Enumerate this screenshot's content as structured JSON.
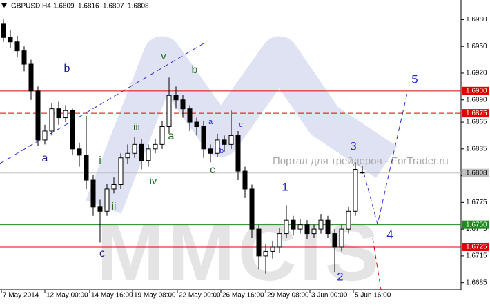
{
  "chart_data": {
    "type": "candlestick",
    "header": {
      "symbol": "GBPUSD,H4",
      "ohlc": [
        "1.6809",
        "1.6816",
        "1.6807",
        "1.6808"
      ]
    },
    "watermark": "Портал для трейдеров - ForTrader.ru",
    "logo": "MMCIS",
    "candles": {
      "open": [
        1.6975,
        1.696,
        1.6955,
        1.6945,
        1.693,
        1.69,
        1.6845,
        1.6855,
        1.688,
        1.687,
        1.6878,
        1.6835,
        1.6828,
        1.68,
        1.677,
        1.6765,
        1.679,
        1.6795,
        1.6825,
        1.683,
        1.684,
        1.6822,
        1.6835,
        1.684,
        1.686,
        1.6895,
        1.689,
        1.688,
        1.6865,
        1.686,
        1.6835,
        1.683,
        1.6845,
        1.684,
        1.685,
        1.681,
        1.679,
        1.6745,
        1.6715,
        1.672,
        1.6725,
        1.674,
        1.6755,
        1.6745,
        1.675,
        1.674,
        1.6745,
        1.6755,
        1.674,
        1.6725,
        1.6745,
        1.6765,
        1.6809
      ],
      "high": [
        1.698,
        1.6968,
        1.6962,
        1.695,
        1.6935,
        1.6905,
        1.6862,
        1.6886,
        1.6888,
        1.6884,
        1.688,
        1.6842,
        1.6872,
        1.6806,
        1.6778,
        1.6796,
        1.6803,
        1.683,
        1.684,
        1.6848,
        1.6846,
        1.684,
        1.6846,
        1.6866,
        1.6915,
        1.6905,
        1.6896,
        1.6884,
        1.687,
        1.6866,
        1.684,
        1.6852,
        1.685,
        1.6878,
        1.6855,
        1.6815,
        1.6795,
        1.675,
        1.6728,
        1.6732,
        1.6746,
        1.6772,
        1.676,
        1.6756,
        1.6755,
        1.675,
        1.6762,
        1.676,
        1.6745,
        1.675,
        1.677,
        1.682,
        1.6816
      ],
      "low": [
        1.6955,
        1.6948,
        1.6938,
        1.6922,
        1.689,
        1.6838,
        1.684,
        1.685,
        1.6862,
        1.6865,
        1.6828,
        1.6815,
        1.679,
        1.676,
        1.673,
        1.676,
        1.6785,
        1.679,
        1.6818,
        1.6825,
        1.6812,
        1.6815,
        1.683,
        1.6835,
        1.6852,
        1.688,
        1.687,
        1.6855,
        1.685,
        1.6825,
        1.682,
        1.6826,
        1.6832,
        1.6835,
        1.68,
        1.678,
        1.6735,
        1.67,
        1.6695,
        1.6712,
        1.6718,
        1.6735,
        1.6738,
        1.674,
        1.6734,
        1.6735,
        1.674,
        1.6735,
        1.6697,
        1.672,
        1.674,
        1.676,
        1.6807
      ],
      "close": [
        1.696,
        1.6955,
        1.6945,
        1.693,
        1.69,
        1.6845,
        1.6855,
        1.688,
        1.687,
        1.6878,
        1.6835,
        1.6828,
        1.68,
        1.677,
        1.6765,
        1.679,
        1.6795,
        1.6825,
        1.683,
        1.684,
        1.6822,
        1.6835,
        1.684,
        1.686,
        1.6895,
        1.689,
        1.688,
        1.6865,
        1.686,
        1.6835,
        1.683,
        1.6845,
        1.684,
        1.685,
        1.681,
        1.679,
        1.6745,
        1.6715,
        1.672,
        1.6725,
        1.674,
        1.6755,
        1.6745,
        1.675,
        1.674,
        1.6745,
        1.6755,
        1.674,
        1.6725,
        1.6745,
        1.6765,
        1.6812,
        1.6808
      ]
    },
    "xlim": [
      -0.5,
      66.3
    ],
    "xticks": [
      {
        "value": -0.3,
        "label": "7 May 2014"
      },
      {
        "value": 6,
        "label": "12 May 00:00"
      },
      {
        "value": 12.5,
        "label": "14 May 16:00"
      },
      {
        "value": 18.7,
        "label": "19 May 08:00"
      },
      {
        "value": 25.2,
        "label": "22 May 00:00"
      },
      {
        "value": 31.5,
        "label": "26 May 16:00"
      },
      {
        "value": 38,
        "label": "29 May 08:00"
      },
      {
        "value": 44.4,
        "label": "3 Jun 00:00"
      },
      {
        "value": 50.7,
        "label": "5 Jun 16:00"
      }
    ],
    "ylim": [
      1.6677,
      1.7002
    ],
    "yticks": [
      {
        "value": 1.698,
        "label": "1.6980"
      },
      {
        "value": 1.695,
        "label": "1.6950"
      },
      {
        "value": 1.692,
        "label": "1.6920"
      },
      {
        "value": 1.689,
        "label": "1.6890"
      },
      {
        "value": 1.6865,
        "label": "1.6865"
      },
      {
        "value": 1.6835,
        "label": "1.6835"
      },
      {
        "value": 1.6805,
        "label": "1.6805"
      },
      {
        "value": 1.6775,
        "label": "1.6775"
      },
      {
        "value": 1.6745,
        "label": "1.6745"
      },
      {
        "value": 1.6715,
        "label": "1.6715"
      },
      {
        "value": 1.6685,
        "label": "1.6685"
      }
    ],
    "levels": [
      {
        "value": 1.69,
        "label": "1.6900",
        "color": "#e00000",
        "style": "solid"
      },
      {
        "value": 1.6875,
        "label": "1.6875",
        "color": "#e00000",
        "style": "dashed"
      },
      {
        "value": 1.6808,
        "label": "1.6808",
        "color": "#c0c0c0",
        "style": "solid"
      },
      {
        "value": 1.675,
        "label": "1.6750",
        "color": "#1f8a1f",
        "style": "solid"
      },
      {
        "value": 1.6725,
        "label": "1.6725",
        "color": "#e00000",
        "style": "solid"
      }
    ],
    "annotations": [
      {
        "text": "a",
        "color": "#1a1a8c"
      },
      {
        "text": "b",
        "color": "#1a1a8c"
      },
      {
        "text": "c",
        "color": "#1a1a8c"
      },
      {
        "text": "i",
        "color": "#1e6b1e"
      },
      {
        "text": "ii",
        "color": "#1e6b1e"
      },
      {
        "text": "iii",
        "color": "#1e6b1e"
      },
      {
        "text": "iv",
        "color": "#1e6b1e"
      },
      {
        "text": "v",
        "color": "#1e6b1e"
      },
      {
        "text": "b",
        "color": "#1e6b1e"
      },
      {
        "text": "a",
        "color": "#1e6b1e"
      },
      {
        "text": "c",
        "color": "#1e6b1e"
      },
      {
        "text": "a",
        "color": "#2a2ad0"
      },
      {
        "text": "b",
        "color": "#2a2ad0"
      },
      {
        "text": "c",
        "color": "#2a2ad0"
      },
      {
        "text": "1",
        "color": "#2a2ad0"
      },
      {
        "text": "2",
        "color": "#2a2ad0"
      },
      {
        "text": "3",
        "color": "#2a2ad0"
      },
      {
        "text": "4",
        "color": "#2a2ad0"
      },
      {
        "text": "5",
        "color": "#2a2ad0"
      }
    ]
  }
}
